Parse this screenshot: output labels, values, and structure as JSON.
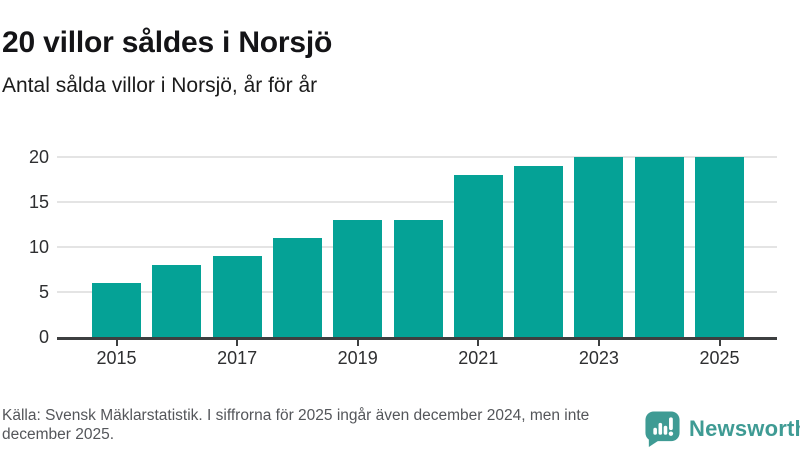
{
  "header": {
    "title": "20 villor såldes i Norsjö",
    "subtitle": "Antal sålda villor i Norsjö, år för år"
  },
  "chart_data": {
    "type": "bar",
    "title": "20 villor såldes i Norsjö",
    "subtitle": "Antal sålda villor i Norsjö, år för år",
    "categories": [
      2015,
      2016,
      2017,
      2018,
      2019,
      2020,
      2021,
      2022,
      2023,
      2024,
      2025
    ],
    "values": [
      6,
      8,
      9,
      11,
      13,
      13,
      18,
      19,
      20,
      20,
      20
    ],
    "xlabel": "",
    "ylabel": "",
    "ylim": [
      0,
      20
    ],
    "yticks": [
      0,
      5,
      10,
      15,
      20
    ],
    "xticks_shown": [
      2015,
      2017,
      2019,
      2021,
      2023,
      2025
    ],
    "grid": "horizontal",
    "legend": "none",
    "bar_color": "#05a296"
  },
  "footer": {
    "source_text": "Källa: Svensk Mäklarstatistik. I siffrorna för 2025 ingår även december 2024, men inte december 2025.",
    "brand_name": "Newsworthy"
  },
  "colors": {
    "bar": "#05a296",
    "brand": "#3f9b94",
    "gridline": "#e4e4e4",
    "axis": "#3d3f40",
    "title_text": "#141417",
    "source_text": "#54565a",
    "background": "#ffffff"
  }
}
